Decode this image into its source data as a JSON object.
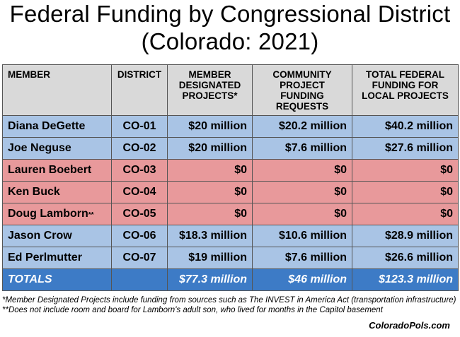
{
  "title_line1": "Federal Funding by Congressional District",
  "title_line2": "(Colorado: 2021)",
  "headers": {
    "member": "MEMBER",
    "district": "DISTRICT",
    "mdp": "MEMBER DESIGNATED PROJECTS*",
    "cpf": "COMMUNITY PROJECT FUNDING REQUESTS",
    "total": "TOTAL FEDERAL FUNDING FOR LOCAL PROJECTS"
  },
  "rows": [
    {
      "member": "Diana DeGette",
      "district": "CO-01",
      "mdp": "$20 million",
      "cpf": "$20.2 million",
      "total": "$40.2 million"
    },
    {
      "member": "Joe Neguse",
      "district": "CO-02",
      "mdp": "$20 million",
      "cpf": "$7.6 million",
      "total": "$27.6 million"
    },
    {
      "member": "Lauren Boebert",
      "district": "CO-03",
      "mdp": "$0",
      "cpf": "$0",
      "total": "$0"
    },
    {
      "member": "Ken Buck",
      "district": "CO-04",
      "mdp": "$0",
      "cpf": "$0",
      "total": "$0"
    },
    {
      "member": "Doug Lamborn",
      "member_mark": "**",
      "district": "CO-05",
      "mdp": "$0",
      "cpf": "$0",
      "total": "$0"
    },
    {
      "member": "Jason Crow",
      "district": "CO-06",
      "mdp": "$18.3 million",
      "cpf": "$10.6 million",
      "total": "$28.9 million"
    },
    {
      "member": "Ed Perlmutter",
      "district": "CO-07",
      "mdp": "$19 million",
      "cpf": "$7.6 million",
      "total": "$26.6 million"
    }
  ],
  "totals": {
    "label": "TOTALS",
    "mdp": "$77.3 million",
    "cpf": "$46 million",
    "total": "$123.3 million"
  },
  "footnote1": "*Member Designated Projects include funding from sources such as The INVEST in America Act (transportation infrastructure)",
  "footnote2": "**Does not include room and board for Lamborn's adult son, who lived for months in the Capitol basement",
  "credit": "ColoradoPols.com",
  "colors": {
    "blue_row": "#a9c4e5",
    "red_row": "#e8999b",
    "totals_row": "#3d7bc6",
    "header": "#d9d9d9"
  }
}
